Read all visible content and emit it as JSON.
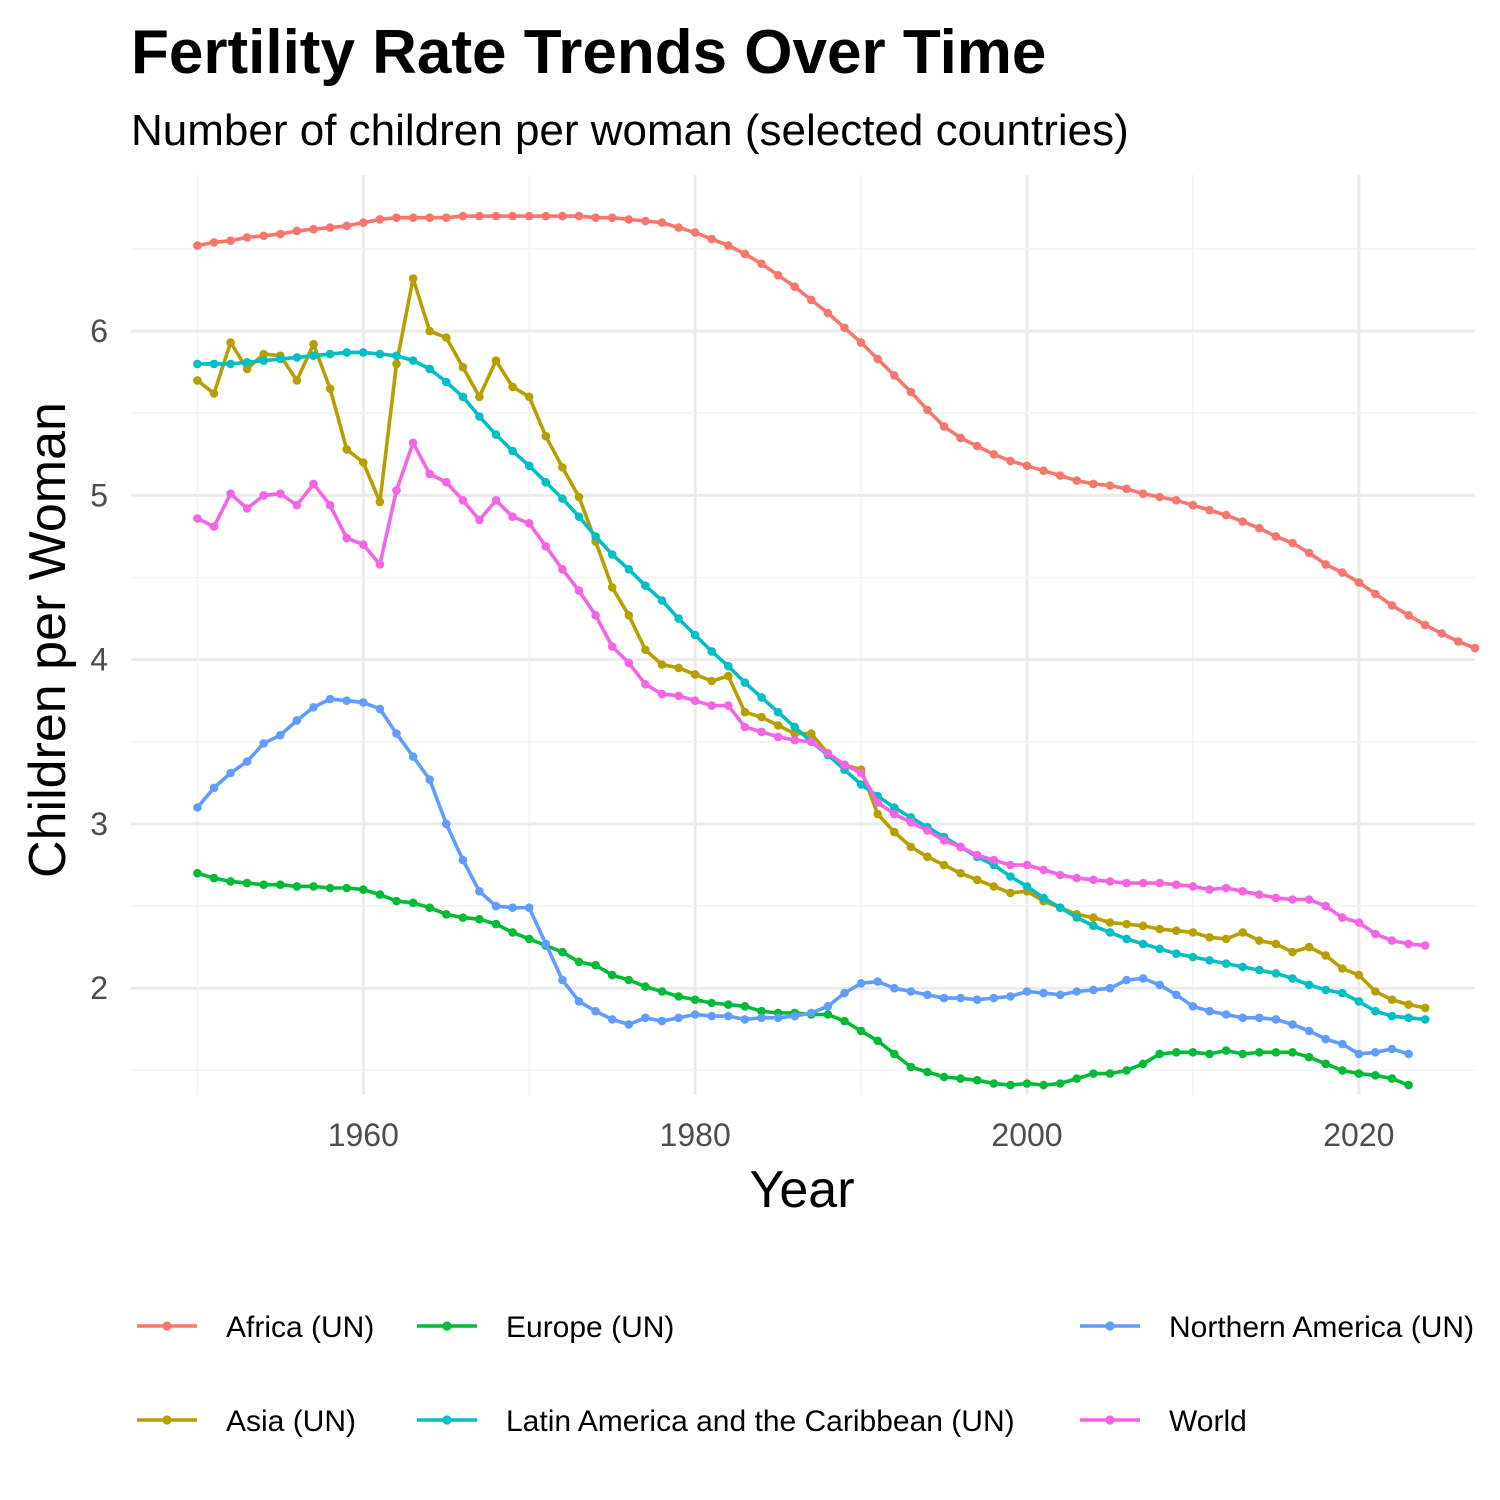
{
  "chart_data": {
    "type": "line",
    "title": "Fertility Rate Trends Over Time",
    "subtitle": "Number of children per woman (selected countries)",
    "xlabel": "Year",
    "ylabel": "Children per Woman",
    "xlim": [
      1946,
      2027
    ],
    "ylim": [
      1.35,
      6.95
    ],
    "xticks": [
      1960,
      1980,
      2000,
      2020
    ],
    "yticks": [
      2,
      3,
      4,
      5,
      6
    ],
    "grid": true,
    "legend_position": "bottom",
    "x_start": 1950,
    "series": [
      {
        "name": "Africa (UN)",
        "color": "#F8766D",
        "values": [
          6.52,
          6.54,
          6.55,
          6.57,
          6.58,
          6.59,
          6.61,
          6.62,
          6.63,
          6.64,
          6.66,
          6.68,
          6.69,
          6.69,
          6.69,
          6.69,
          6.7,
          6.7,
          6.7,
          6.7,
          6.7,
          6.7,
          6.7,
          6.7,
          6.69,
          6.69,
          6.68,
          6.67,
          6.66,
          6.63,
          6.6,
          6.56,
          6.52,
          6.47,
          6.41,
          6.34,
          6.27,
          6.19,
          6.11,
          6.02,
          5.93,
          5.83,
          5.73,
          5.63,
          5.52,
          5.42,
          5.35,
          5.3,
          5.25,
          5.21,
          5.18,
          5.15,
          5.12,
          5.09,
          5.07,
          5.06,
          5.04,
          5.01,
          4.99,
          4.97,
          4.94,
          4.91,
          4.88,
          4.84,
          4.8,
          4.75,
          4.71,
          4.65,
          4.58,
          4.53,
          4.47,
          4.4,
          4.33,
          4.27,
          4.21,
          4.16,
          4.11,
          4.07
        ]
      },
      {
        "name": "Europe (UN)",
        "color": "#00BA38",
        "values": [
          2.7,
          2.67,
          2.65,
          2.64,
          2.63,
          2.63,
          2.62,
          2.62,
          2.61,
          2.61,
          2.6,
          2.57,
          2.53,
          2.52,
          2.49,
          2.45,
          2.43,
          2.42,
          2.39,
          2.34,
          2.3,
          2.26,
          2.22,
          2.16,
          2.14,
          2.08,
          2.05,
          2.01,
          1.98,
          1.95,
          1.93,
          1.91,
          1.9,
          1.89,
          1.86,
          1.85,
          1.85,
          1.84,
          1.84,
          1.8,
          1.74,
          1.68,
          1.6,
          1.52,
          1.49,
          1.46,
          1.45,
          1.44,
          1.42,
          1.41,
          1.42,
          1.41,
          1.42,
          1.45,
          1.48,
          1.48,
          1.5,
          1.54,
          1.6,
          1.61,
          1.61,
          1.6,
          1.62,
          1.6,
          1.61,
          1.61,
          1.61,
          1.58,
          1.54,
          1.5,
          1.48,
          1.47,
          1.45,
          1.41
        ]
      },
      {
        "name": "Northern America (UN)",
        "color": "#619CFF",
        "values": [
          3.1,
          3.22,
          3.31,
          3.38,
          3.49,
          3.54,
          3.63,
          3.71,
          3.76,
          3.75,
          3.74,
          3.7,
          3.55,
          3.41,
          3.27,
          3.0,
          2.78,
          2.59,
          2.5,
          2.49,
          2.49,
          2.27,
          2.05,
          1.92,
          1.86,
          1.81,
          1.78,
          1.82,
          1.8,
          1.82,
          1.84,
          1.83,
          1.83,
          1.81,
          1.82,
          1.82,
          1.83,
          1.85,
          1.89,
          1.97,
          2.03,
          2.04,
          2.0,
          1.98,
          1.96,
          1.94,
          1.94,
          1.93,
          1.94,
          1.95,
          1.98,
          1.97,
          1.96,
          1.98,
          1.99,
          2.0,
          2.05,
          2.06,
          2.02,
          1.96,
          1.89,
          1.86,
          1.84,
          1.82,
          1.82,
          1.81,
          1.78,
          1.74,
          1.69,
          1.66,
          1.6,
          1.61,
          1.63,
          1.6
        ]
      },
      {
        "name": "Asia (UN)",
        "color": "#B79F00",
        "values": [
          5.7,
          5.62,
          5.93,
          5.77,
          5.86,
          5.85,
          5.7,
          5.92,
          5.65,
          5.28,
          5.2,
          4.96,
          5.8,
          6.32,
          6.0,
          5.96,
          5.78,
          5.6,
          5.82,
          5.66,
          5.6,
          5.36,
          5.17,
          4.99,
          4.72,
          4.44,
          4.27,
          4.06,
          3.97,
          3.95,
          3.91,
          3.87,
          3.9,
          3.68,
          3.65,
          3.6,
          3.55,
          3.55,
          3.43,
          3.36,
          3.33,
          3.06,
          2.95,
          2.86,
          2.8,
          2.75,
          2.7,
          2.66,
          2.62,
          2.58,
          2.59,
          2.53,
          2.49,
          2.45,
          2.43,
          2.4,
          2.39,
          2.38,
          2.36,
          2.35,
          2.34,
          2.31,
          2.3,
          2.34,
          2.29,
          2.27,
          2.22,
          2.25,
          2.2,
          2.12,
          2.08,
          1.98,
          1.93,
          1.9,
          1.88
        ]
      },
      {
        "name": "Latin America and the Caribbean (UN)",
        "color": "#00BFC4",
        "values": [
          5.8,
          5.8,
          5.8,
          5.81,
          5.82,
          5.83,
          5.84,
          5.85,
          5.86,
          5.87,
          5.87,
          5.86,
          5.85,
          5.82,
          5.77,
          5.69,
          5.6,
          5.48,
          5.37,
          5.27,
          5.18,
          5.08,
          4.98,
          4.87,
          4.75,
          4.64,
          4.55,
          4.45,
          4.36,
          4.25,
          4.15,
          4.05,
          3.96,
          3.86,
          3.77,
          3.68,
          3.59,
          3.5,
          3.42,
          3.33,
          3.24,
          3.17,
          3.1,
          3.04,
          2.98,
          2.92,
          2.86,
          2.8,
          2.75,
          2.68,
          2.62,
          2.55,
          2.49,
          2.43,
          2.38,
          2.34,
          2.3,
          2.27,
          2.24,
          2.21,
          2.19,
          2.17,
          2.15,
          2.13,
          2.11,
          2.09,
          2.06,
          2.02,
          1.99,
          1.97,
          1.92,
          1.86,
          1.83,
          1.82,
          1.81
        ]
      },
      {
        "name": "World",
        "color": "#F564E3",
        "values": [
          4.86,
          4.81,
          5.01,
          4.92,
          5.0,
          5.01,
          4.94,
          5.07,
          4.94,
          4.74,
          4.7,
          4.58,
          5.03,
          5.32,
          5.13,
          5.08,
          4.97,
          4.85,
          4.97,
          4.87,
          4.83,
          4.69,
          4.55,
          4.42,
          4.27,
          4.08,
          3.98,
          3.85,
          3.79,
          3.78,
          3.75,
          3.72,
          3.72,
          3.59,
          3.56,
          3.53,
          3.51,
          3.5,
          3.43,
          3.36,
          3.31,
          3.13,
          3.06,
          3.01,
          2.96,
          2.9,
          2.86,
          2.81,
          2.78,
          2.75,
          2.75,
          2.72,
          2.69,
          2.67,
          2.66,
          2.65,
          2.64,
          2.64,
          2.64,
          2.63,
          2.62,
          2.6,
          2.61,
          2.59,
          2.57,
          2.55,
          2.54,
          2.54,
          2.5,
          2.43,
          2.4,
          2.33,
          2.29,
          2.27,
          2.26
        ]
      }
    ],
    "legend": {
      "row1": [
        "Africa (UN)",
        "Europe (UN)",
        "Northern America (UN)"
      ],
      "row2": [
        "Asia (UN)",
        "Latin America and the Caribbean (UN)",
        "World"
      ]
    }
  }
}
